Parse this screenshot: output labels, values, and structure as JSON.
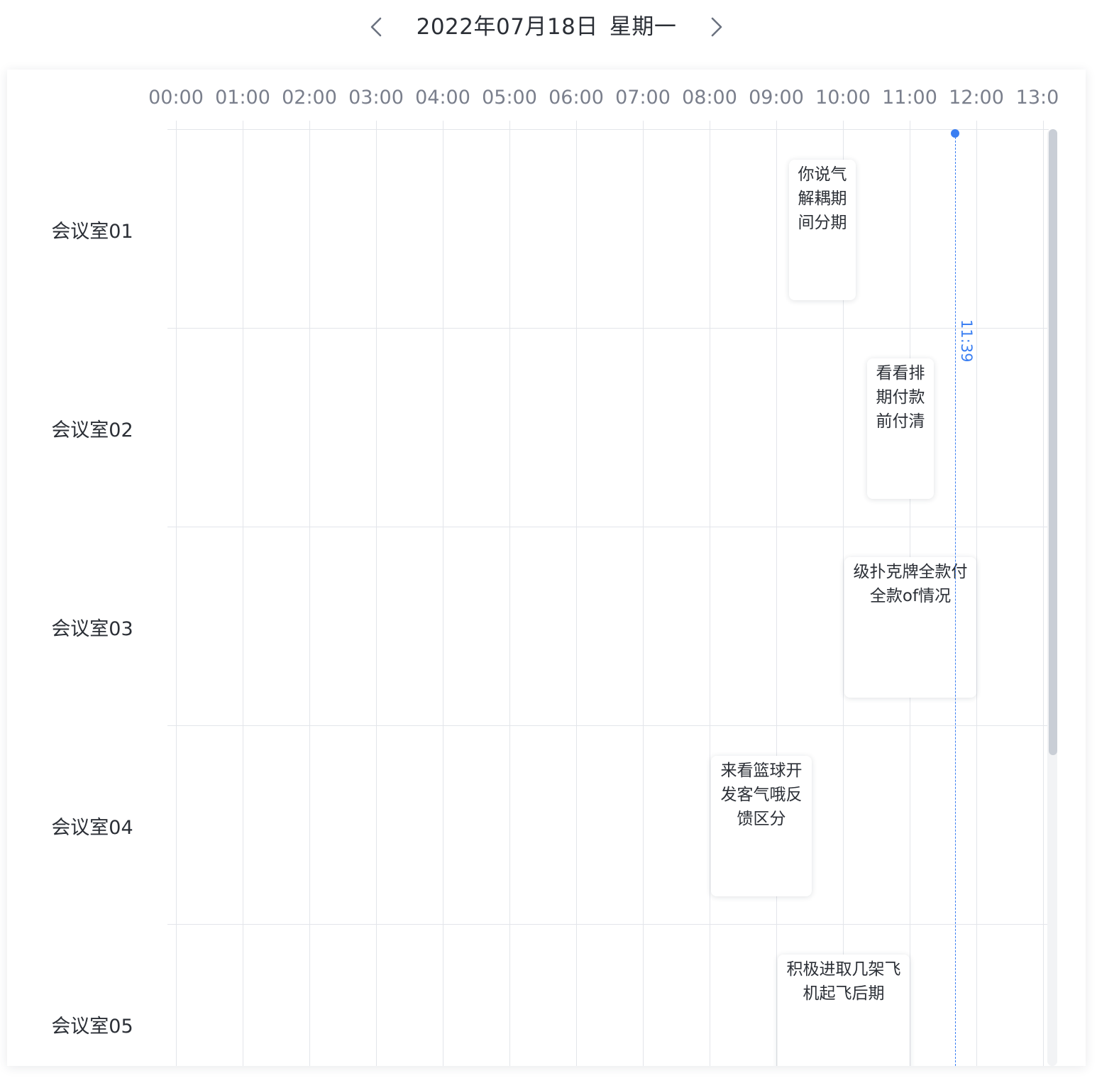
{
  "header": {
    "date": "2022年07月18日",
    "weekday": "星期一",
    "prev_icon": "chevron-left-icon",
    "next_icon": "chevron-right-icon"
  },
  "timeline": {
    "hours": [
      "00:00",
      "01:00",
      "02:00",
      "03:00",
      "04:00",
      "05:00",
      "06:00",
      "07:00",
      "08:00",
      "09:00",
      "10:00",
      "11:00",
      "12:00",
      "13:0"
    ],
    "current_time": "11:39",
    "accent_color": "#3b7ff2"
  },
  "rooms": [
    {
      "name": "会议室01",
      "events": [
        {
          "title": "你说气解耦期间分期"
        }
      ]
    },
    {
      "name": "会议室02",
      "events": [
        {
          "title": "看看排期付款前付清"
        }
      ]
    },
    {
      "name": "会议室03",
      "events": [
        {
          "title": "级扑克牌全款付全款of情况"
        }
      ]
    },
    {
      "name": "会议室04",
      "events": [
        {
          "title": "来看篮球开发客气哦反馈区分"
        }
      ]
    },
    {
      "name": "会议室05",
      "events": [
        {
          "title": "积极进取几架飞机起飞后期"
        }
      ]
    }
  ]
}
